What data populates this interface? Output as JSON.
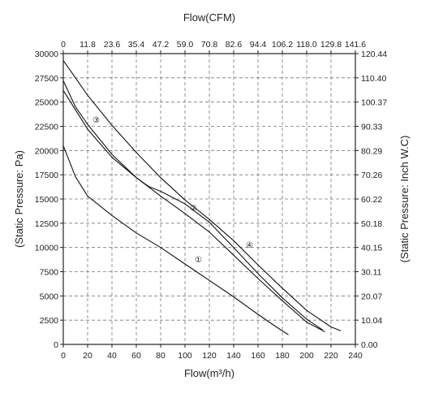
{
  "chart_data": {
    "type": "line",
    "title": "",
    "xlabel": "Flow(m³/h)",
    "x2label": "Flow(CFM)",
    "ylabel": "(Static Pressure: Pa)",
    "y2label": "(Static Pressure: Inch W.C)",
    "xlim": [
      0,
      240
    ],
    "ylim": [
      0,
      30000
    ],
    "grid": true,
    "x_ticks": [
      "0",
      "20",
      "40",
      "60",
      "80",
      "100",
      "120",
      "140",
      "160",
      "180",
      "200",
      "220",
      "240"
    ],
    "x2_ticks": [
      "0",
      "11.8",
      "23.6",
      "35.4",
      "47.2",
      "59.0",
      "70.8",
      "82.6",
      "94.4",
      "106.2",
      "118.0",
      "129.8",
      "141.6"
    ],
    "y_ticks": [
      "0",
      "2500",
      "5000",
      "7500",
      "10000",
      "12500",
      "15000",
      "17500",
      "20000",
      "22500",
      "25000",
      "27500",
      "30000"
    ],
    "y2_ticks": [
      "0.00",
      "10.04",
      "20.07",
      "30.11",
      "40.15",
      "50.18",
      "60.22",
      "70.26",
      "80.29",
      "90.33",
      "100.37",
      "110.40",
      "120.44"
    ],
    "series": [
      {
        "label": "①",
        "x": [
          0,
          10,
          20,
          40,
          60,
          80,
          100,
          120,
          140,
          160,
          175,
          185
        ],
        "y": [
          20500,
          17300,
          15300,
          13300,
          11500,
          10000,
          8300,
          6600,
          4900,
          3100,
          1800,
          1000
        ],
        "label_at": [
          111,
          8800
        ]
      },
      {
        "label": "②",
        "x": [
          0,
          10,
          20,
          40,
          60,
          80,
          100,
          120,
          140,
          160,
          180,
          200,
          215
        ],
        "y": [
          27200,
          24500,
          22700,
          19600,
          17200,
          15300,
          13500,
          11600,
          9200,
          6800,
          4500,
          2300,
          1300
        ],
        "label_at": [
          107,
          14100
        ]
      },
      {
        "label": "③",
        "x": [
          0,
          10,
          20,
          40,
          60,
          70,
          80,
          100,
          120,
          140,
          160,
          180,
          200,
          213
        ],
        "y": [
          26200,
          24200,
          22200,
          19300,
          17200,
          16300,
          15800,
          14500,
          12600,
          10000,
          7300,
          4800,
          2600,
          1500
        ],
        "label_at": [
          27,
          23200
        ]
      },
      {
        "label": "④",
        "x": [
          0,
          10,
          20,
          40,
          60,
          80,
          100,
          120,
          140,
          160,
          180,
          200,
          220,
          228
        ],
        "y": [
          29300,
          27500,
          25700,
          22600,
          19800,
          17200,
          14900,
          12900,
          10700,
          8200,
          5800,
          3500,
          1800,
          1400
        ],
        "label_at": [
          153,
          10300
        ]
      }
    ]
  }
}
